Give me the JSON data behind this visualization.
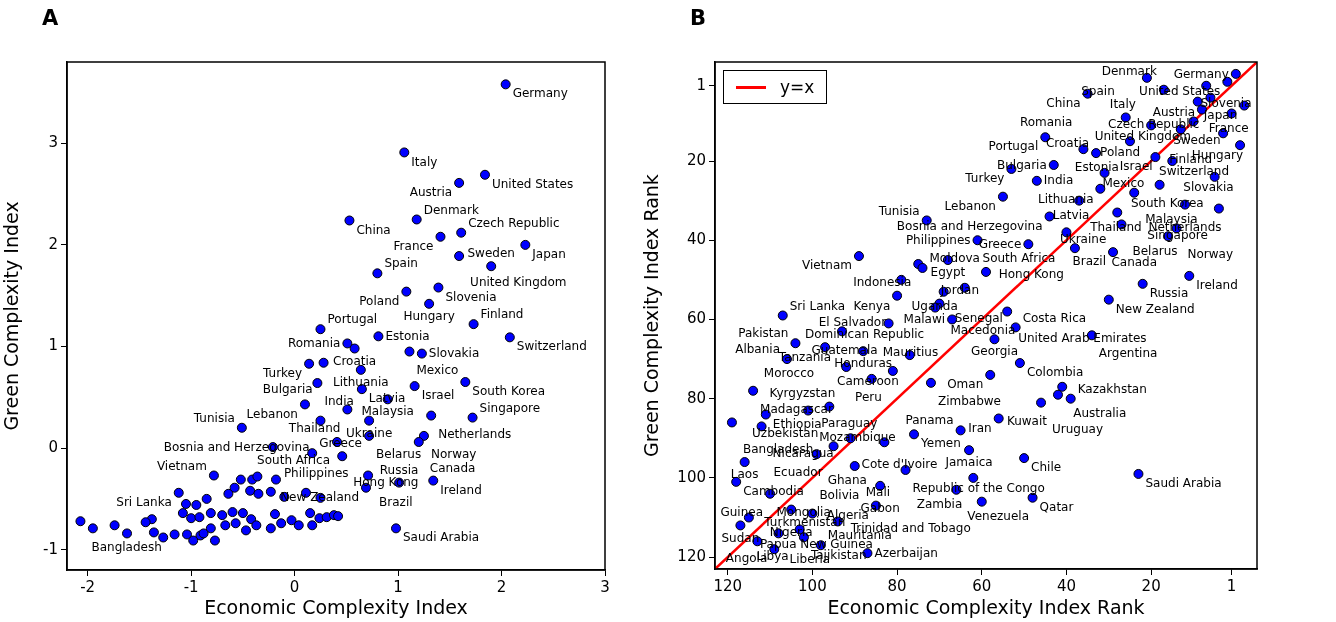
{
  "chart_data": [
    {
      "type": "scatter",
      "title": "A",
      "xlabel": "Economic Complexity Index",
      "ylabel": "Green Complexity Index",
      "xlim": [
        -2.2,
        3
      ],
      "ylim": [
        -1.2,
        3.8
      ],
      "xticks": [
        -2,
        -1,
        0,
        1,
        2,
        3
      ],
      "yticks": [
        -1,
        0,
        1,
        2,
        3
      ],
      "grid": false,
      "marker": "circle",
      "color": "#0000ff",
      "x": [
        2.04,
        1.06,
        1.84,
        1.59,
        0.53,
        1.18,
        1.41,
        1.61,
        2.23,
        1.59,
        1.9,
        0.8,
        1.39,
        1.08,
        1.3,
        1.73,
        2.08,
        0.25,
        0.81,
        0.51,
        0.58,
        1.11,
        1.23,
        0.14,
        0.28,
        0.64,
        0.22,
        0.65,
        1.16,
        1.65,
        0.9,
        0.1,
        0.51,
        1.32,
        1.72,
        0.72,
        0.25,
        -0.51,
        0.72,
        1.25,
        0.41,
        1.2,
        -0.21,
        0.17,
        0.46,
        0.71,
        1.01,
        1.34,
        0.69,
        0.98,
        -0.78,
        -1.12,
        -2.07,
        -0.52,
        -0.41,
        -0.36,
        -0.18,
        -0.58,
        -0.64,
        -0.43,
        -0.35,
        -0.23,
        -0.1,
        0.11,
        0.25,
        -0.85,
        -1.05,
        -0.95,
        -0.81,
        -1.08,
        -1.0,
        -0.92,
        -0.7,
        -0.6,
        -0.5,
        -0.42,
        -0.19,
        -0.03,
        0.15,
        0.24,
        0.31,
        0.38,
        0.42,
        -1.38,
        -1.44,
        -1.74,
        -1.95,
        -1.62,
        -1.36,
        -1.27,
        -1.16,
        -1.04,
        -0.91,
        -0.81,
        -0.67,
        -0.57,
        -0.47,
        -0.37,
        -0.23,
        -0.13,
        0.04,
        0.17,
        -0.77,
        -0.98,
        -0.88
      ],
      "values": [
        3.58,
        2.91,
        2.69,
        2.61,
        2.24,
        2.25,
        2.08,
        2.12,
        2.0,
        1.89,
        1.79,
        1.72,
        1.58,
        1.54,
        1.42,
        1.22,
        1.09,
        1.17,
        1.1,
        1.03,
        0.98,
        0.95,
        0.93,
        0.83,
        0.84,
        0.77,
        0.64,
        0.58,
        0.61,
        0.65,
        0.48,
        0.43,
        0.38,
        0.32,
        0.3,
        0.27,
        0.27,
        0.2,
        0.12,
        0.12,
        0.06,
        0.06,
        0.01,
        -0.05,
        -0.08,
        -0.27,
        -0.34,
        -0.32,
        -0.39,
        -0.79,
        -0.27,
        -0.44,
        -0.72,
        -0.31,
        -0.31,
        -0.28,
        -0.31,
        -0.39,
        -0.45,
        -0.42,
        -0.45,
        -0.43,
        -0.48,
        -0.44,
        -0.49,
        -0.5,
        -0.55,
        -0.56,
        -0.64,
        -0.64,
        -0.69,
        -0.68,
        -0.66,
        -0.63,
        -0.64,
        -0.7,
        -0.65,
        -0.71,
        -0.64,
        -0.69,
        -0.68,
        -0.66,
        -0.67,
        -0.7,
        -0.73,
        -0.76,
        -0.79,
        -0.84,
        -0.83,
        -0.88,
        -0.85,
        -0.85,
        -0.86,
        -0.79,
        -0.76,
        -0.74,
        -0.81,
        -0.76,
        -0.79,
        -0.74,
        -0.76,
        -0.76,
        -0.91,
        -0.91,
        -0.84
      ],
      "value_labels": [
        "Germany",
        "Italy",
        "United States",
        "Austria",
        "China",
        "Denmark",
        "France",
        "Czech Republic",
        "Japan",
        "United Kingdom",
        "Sweden",
        "Spain",
        "Slovenia",
        "Poland",
        "Hungary",
        "Finland",
        "Switzerland",
        "Portugal",
        "Estonia",
        "Romania",
        "Croatia",
        "Mexico",
        "Slovakia",
        "Turkey",
        "Bulgaria",
        "Lithuania",
        "India",
        "Latvia",
        "Israel",
        "South Korea",
        "Malaysia",
        "Lebanon",
        "Thailand",
        "Netherlands",
        "Singapore",
        "Ukraine",
        "Bosnia and Herzegovina",
        "Tunisia",
        "Belarus",
        "Norway",
        "South Africa",
        "Canada",
        "Philippines",
        "Greece",
        "Hong Kong",
        "Brazil",
        "Russia",
        "Ireland",
        "New Zealand",
        "Saudi Arabia",
        "Vietnam",
        "Sri Lanka",
        "Bangladesh",
        null,
        null,
        null,
        null,
        null,
        null,
        null,
        null,
        null,
        null,
        null,
        null,
        null,
        null,
        null,
        null,
        null,
        null,
        null,
        null,
        null,
        null,
        null,
        null,
        null,
        null,
        null,
        null,
        null,
        null,
        null,
        null,
        null,
        null,
        null,
        null,
        null,
        null,
        null,
        null,
        null,
        null,
        null,
        null,
        null,
        null,
        null,
        null,
        null,
        null,
        null,
        null
      ]
    },
    {
      "type": "scatter",
      "title": "B",
      "xlabel": "Economic Complexity Index Rank",
      "ylabel": "Green Complexity Index Rank",
      "xlim": [
        123,
        -5
      ],
      "ylim": [
        123,
        -5
      ],
      "xticks": [
        120,
        100,
        80,
        60,
        40,
        20,
        1
      ],
      "yticks": [
        1,
        20,
        40,
        60,
        80,
        100,
        120
      ],
      "grid": false,
      "legend": "top left",
      "series": [
        {
          "color": "#0000ff",
          "marker": "circle",
          "x": [
            0,
            2,
            7,
            17,
            21,
            35,
            6,
            9,
            -2,
            8,
            1,
            10,
            26,
            20,
            13,
            3,
            -1,
            45,
            25,
            36,
            33,
            19,
            15,
            53,
            43,
            31,
            47,
            5,
            18,
            32,
            24,
            55,
            37,
            12,
            4,
            28,
            44,
            73,
            27,
            14,
            40,
            16,
            61,
            49,
            38,
            29,
            89,
            68,
            75,
            74,
            59,
            11,
            79,
            22,
            64,
            69,
            80,
            30,
            70,
            71,
            54,
            107,
            67,
            82,
            52,
            93,
            34,
            57,
            104,
            97,
            88,
            77,
            106,
            51,
            92,
            81,
            58,
            86,
            72,
            41,
            114,
            42,
            39,
            46,
            96,
            101,
            111,
            56,
            119,
            112,
            65,
            76,
            91,
            83,
            95,
            63,
            99,
            50,
            116,
            90,
            78,
            23,
            62,
            118,
            84,
            66,
            110,
            48,
            60,
            85,
            105,
            100,
            115,
            94,
            117,
            103,
            108,
            102,
            113,
            98,
            109,
            87
          ],
          "values": [
            -2,
            0,
            1,
            2,
            -1,
            3,
            4,
            5,
            6,
            7,
            8,
            10,
            9,
            11,
            12,
            13,
            16,
            14,
            15,
            17,
            18,
            19,
            20,
            22,
            21,
            23,
            25,
            24,
            26,
            27,
            28,
            29,
            30,
            31,
            32,
            33,
            34,
            35,
            36,
            37,
            38,
            39,
            40,
            41,
            42,
            43,
            44,
            45,
            46,
            47,
            48,
            49,
            50,
            51,
            52,
            53,
            54,
            55,
            56,
            57,
            58,
            59,
            60,
            61,
            62,
            63,
            64,
            65,
            66,
            67,
            68,
            69,
            70,
            71,
            72,
            73,
            74,
            75,
            76,
            77,
            78,
            79,
            80,
            81,
            82,
            83,
            84,
            85,
            86,
            87,
            88,
            89,
            90,
            91,
            92,
            93,
            94,
            95,
            96,
            97,
            98,
            99,
            100,
            101,
            102,
            103,
            104,
            105,
            106,
            107,
            108,
            109,
            110,
            111,
            112,
            113,
            114,
            115,
            116,
            117,
            118,
            119
          ],
          "value_labels": [
            "Germany",
            "United States",
            "Austria",
            "Denmark",
            "Italy",
            "China",
            "Czech Republic",
            "France",
            "Japan",
            "United Kingdom",
            "Sweden",
            "Slovenia",
            "Spain",
            "Poland",
            "Hungary",
            "Finland",
            "Switzerland",
            "Portugal",
            "Estonia",
            "Romania",
            "Croatia",
            "Mexico",
            "Slovakia",
            "Turkey",
            "Bulgaria",
            "Lithuania",
            "India",
            "South Korea",
            "Israel",
            "Latvia",
            "Malaysia",
            "Lebanon",
            "Thailand",
            "Netherlands",
            "Singapore",
            "Ukraine",
            "Bosnia and Herzegovina",
            "Tunisia",
            "Belarus",
            "Norway",
            "South Africa",
            "Canada",
            "Philippines",
            "Greece",
            "Hong Kong",
            "Brazil",
            "Vietnam",
            "Egypt",
            "Indonesia",
            "Moldova",
            "Jordan",
            "Ireland",
            "Kenya",
            "Russia",
            "Uganda",
            "Senegal",
            "El Salvador",
            "New Zealand",
            "Macedonia",
            "Dominican Republic",
            "United Arab Emirates",
            "Sri Lanka",
            "Malawi",
            "Guatemala",
            "Costa Rica",
            "Tanzania",
            "Argentina",
            "Georgia",
            "Pakistan",
            "Morocco",
            "Honduras",
            "Cameroon",
            "Albania",
            "Colombia",
            "Kyrgyzstan",
            "Peru",
            "Oman",
            "Mauritius",
            "Zimbabwe",
            "Australia",
            "Madagascar",
            "Kuwait",
            "Kazakhstan",
            "Uruguay",
            "Uzbekistan",
            "Mozambique",
            "Ethiopia",
            "Iran",
            "Bangladesh",
            "Nicaragua",
            "Panama",
            "Yemen",
            "Cote d'Ivoire",
            "Paraguay",
            "Ecuador",
            "Jamaica",
            "Ghana",
            "Chile",
            "Laos",
            "Mali",
            "Republic of the Congo",
            "Saudi Arabia",
            "Zambia",
            "Cambodia",
            "Gabon",
            "Venezuela",
            "Guinea",
            "Qatar",
            "Trinidad and Tobago",
            "Algeria",
            "Nigeria",
            "Bolivia",
            "Papua New Guinea",
            "Mongolia",
            "Sudan",
            "Libya",
            "Liberia",
            "Tajikistan",
            "Turkmenistan",
            "Mauritania",
            "Angola",
            "Azerbaijan"
          ]
        },
        {
          "type": "line",
          "name": "y=x",
          "color": "#ff0000",
          "marker": "none",
          "line_style": "solid",
          "x": [
            123,
            -5
          ],
          "values": [
            123,
            -5
          ]
        }
      ]
    }
  ]
}
